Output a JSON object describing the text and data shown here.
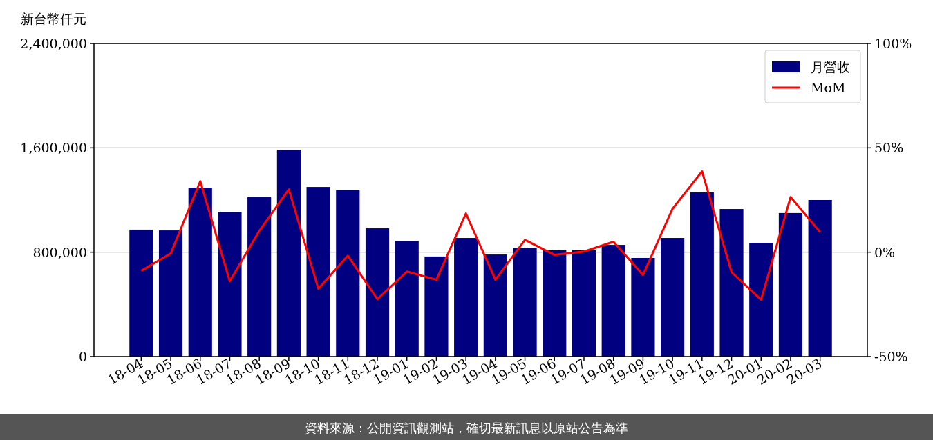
{
  "chart_data": {
    "type": "bar",
    "ylabel": "新台幣仟元",
    "categories": [
      "18-04",
      "18-05",
      "18-06",
      "18-07",
      "18-08",
      "18-09",
      "18-10",
      "18-11",
      "18-12",
      "19-01",
      "19-02",
      "19-03",
      "19-04",
      "19-05",
      "19-06",
      "19-07",
      "19-08",
      "19-09",
      "19-10",
      "19-11",
      "19-12",
      "20-01",
      "20-02",
      "20-03"
    ],
    "series": [
      {
        "name": "月營收",
        "color": "#000080",
        "values": [
          973000,
          967000,
          1295000,
          1110000,
          1221000,
          1586000,
          1300000,
          1274000,
          983000,
          888000,
          767000,
          909000,
          782000,
          830000,
          814000,
          814000,
          856000,
          756000,
          909000,
          1258000,
          1131000,
          872000,
          1100000,
          1200000
        ]
      },
      {
        "name": "MoM",
        "type": "line",
        "axis": "y2",
        "color": "#ff0000",
        "values": [
          -8.9,
          -0.6,
          34.0,
          -13.9,
          10.2,
          30.1,
          -17.5,
          -1.7,
          -22.5,
          -9.3,
          -13.2,
          18.5,
          -13.2,
          5.9,
          -1.3,
          0.3,
          5.0,
          -10.9,
          20.8,
          38.7,
          -9.6,
          -22.8,
          26.4,
          9.6
        ]
      }
    ],
    "ylim": [
      0,
      2400000
    ],
    "yticks": [
      {
        "value": 0,
        "label": "0"
      },
      {
        "value": 800000,
        "label": "800,000"
      },
      {
        "value": 1600000,
        "label": "1,600,000"
      },
      {
        "value": 2400000,
        "label": "2,400,000"
      }
    ],
    "y2lim": [
      -50,
      100
    ],
    "y2ticks": [
      {
        "value": -50,
        "label": "-50%"
      },
      {
        "value": 0,
        "label": "0%"
      },
      {
        "value": 50,
        "label": "50%"
      },
      {
        "value": 100,
        "label": "100%"
      }
    ],
    "grid": "y",
    "legend": "top right",
    "annotations": [
      "資料來源：公開資訊觀測站，確切最新訊息以原站公告為準"
    ]
  }
}
